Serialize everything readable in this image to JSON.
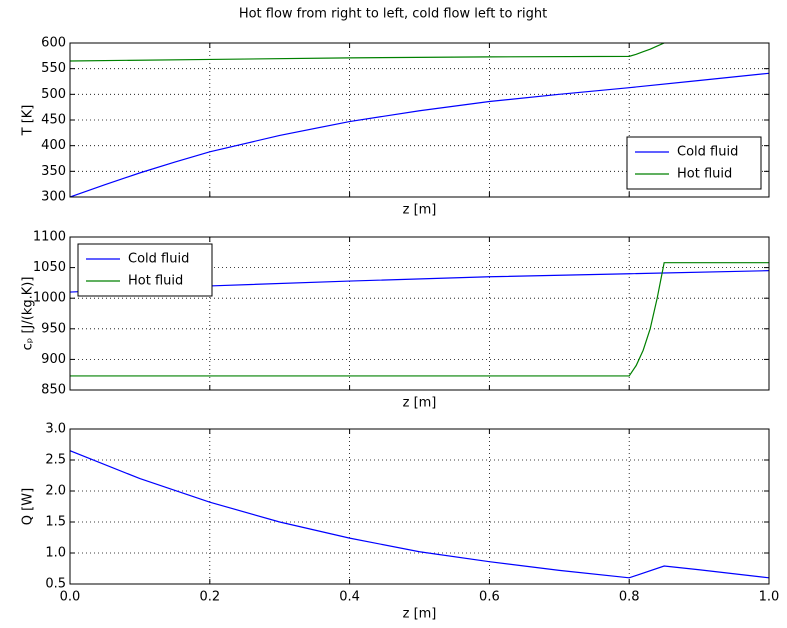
{
  "title": "Hot flow from right to left, cold flow left to right",
  "chart_data": [
    {
      "type": "line",
      "xlabel": "z [m]",
      "ylabel": "T [K]",
      "xlim": [
        0,
        1
      ],
      "xticks": [
        0,
        0.2,
        0.4,
        0.6,
        0.8,
        1
      ],
      "xtick_labels": false,
      "ylim": [
        300,
        600
      ],
      "yticks": [
        300,
        350,
        400,
        450,
        500,
        550,
        600
      ],
      "grid": true,
      "legend": "lower right",
      "series": [
        {
          "name": "Cold fluid",
          "color": "#0000ff",
          "x": [
            0,
            0.05,
            0.1,
            0.15,
            0.2,
            0.3,
            0.4,
            0.5,
            0.6,
            0.7,
            0.8,
            0.9,
            1
          ],
          "values": [
            300,
            324,
            347,
            368,
            388,
            420,
            447,
            468,
            486,
            500,
            513,
            527,
            541
          ]
        },
        {
          "name": "Hot fluid",
          "color": "#008000",
          "x": [
            0,
            0.2,
            0.4,
            0.6,
            0.8,
            0.81,
            0.82,
            0.83,
            0.84,
            0.85
          ],
          "values": [
            565,
            568,
            571,
            573,
            574,
            578,
            583,
            588,
            594,
            600
          ]
        }
      ]
    },
    {
      "type": "line",
      "xlabel": "z [m]",
      "ylabel": "cₚ [J/(kg.K)]",
      "xlim": [
        0,
        1
      ],
      "xticks": [
        0,
        0.2,
        0.4,
        0.6,
        0.8,
        1
      ],
      "xtick_labels": false,
      "ylim": [
        850,
        1100
      ],
      "yticks": [
        850,
        900,
        950,
        1000,
        1050,
        1100
      ],
      "grid": true,
      "legend": "upper left",
      "series": [
        {
          "name": "Cold fluid",
          "color": "#0000ff",
          "x": [
            0,
            0.2,
            0.4,
            0.6,
            0.8,
            1
          ],
          "values": [
            1010,
            1020,
            1028,
            1035,
            1040,
            1045
          ]
        },
        {
          "name": "Hot fluid",
          "color": "#008000",
          "x": [
            0,
            0.8,
            0.81,
            0.82,
            0.83,
            0.84,
            0.85,
            1
          ],
          "values": [
            873,
            873,
            890,
            915,
            950,
            1000,
            1058,
            1058
          ]
        }
      ]
    },
    {
      "type": "line",
      "xlabel": "z [m]",
      "ylabel": "Q [W]",
      "xlim": [
        0,
        1
      ],
      "xticks": [
        {
          "value": 0,
          "label": "0.0"
        },
        0.2,
        0.4,
        0.6,
        0.8,
        {
          "value": 1,
          "label": "1.0"
        }
      ],
      "xtick_labels": true,
      "ylim": [
        0.5,
        3
      ],
      "yticks": [
        0.5,
        {
          "value": 1,
          "label": "1.0"
        },
        1.5,
        {
          "value": 2,
          "label": "2.0"
        },
        2.5,
        {
          "value": 3,
          "label": "3.0"
        }
      ],
      "grid": true,
      "series": [
        {
          "color": "#0000ff",
          "x": [
            0,
            0.1,
            0.2,
            0.3,
            0.4,
            0.5,
            0.6,
            0.7,
            0.8,
            0.85,
            0.9,
            1
          ],
          "values": [
            2.65,
            2.2,
            1.82,
            1.5,
            1.24,
            1.02,
            0.86,
            0.72,
            0.6,
            0.79,
            0.73,
            0.6
          ]
        }
      ]
    }
  ]
}
